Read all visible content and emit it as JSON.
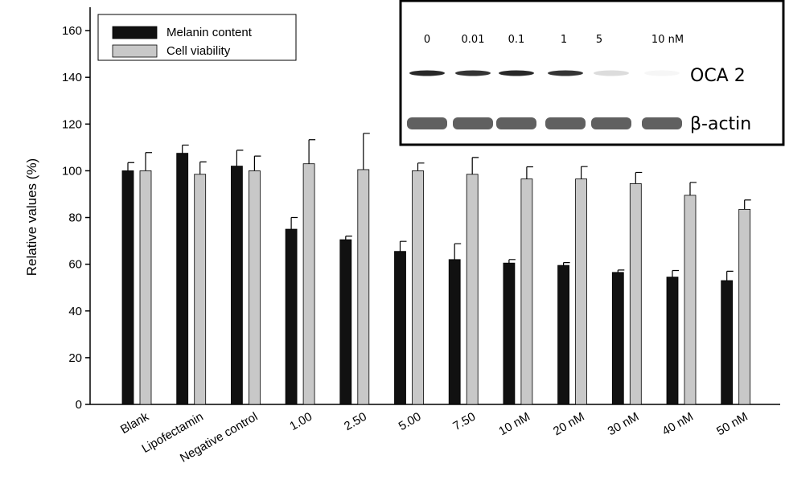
{
  "chart_data": {
    "type": "bar",
    "y_label": "Relative values (%)",
    "categories": [
      "Blank",
      "Lipofectamin",
      "Negative control",
      "1.00",
      "2.50",
      "5.00",
      "7.50",
      "10 nM",
      "20 nM",
      "30 nM",
      "40 nM",
      "50 nM"
    ],
    "series": [
      {
        "name": "Melanin content",
        "color": "#111111",
        "values": [
          100,
          107.5,
          102,
          75,
          70.5,
          65.5,
          62,
          60.5,
          59.5,
          56.5,
          54.5,
          53
        ],
        "errors": [
          3.5,
          3.5,
          6.8,
          5,
          1.5,
          4.3,
          6.8,
          1.5,
          1.2,
          1,
          2.8,
          4
        ]
      },
      {
        "name": "Cell viability",
        "color": "#c8c8c8",
        "values": [
          100,
          98.5,
          100,
          103,
          100.5,
          100,
          98.5,
          96.5,
          96.5,
          94.5,
          89.5,
          83.5
        ],
        "errors": [
          7.8,
          5.3,
          6.3,
          10.3,
          15.5,
          3.3,
          7.2,
          5.2,
          5.3,
          4.8,
          5.5,
          4
        ]
      }
    ],
    "ylim": [
      0,
      170
    ],
    "yticks": [
      0,
      20,
      40,
      60,
      80,
      100,
      120,
      140,
      160
    ],
    "legend": "top-left",
    "inset": {
      "lanes": [
        "0",
        "0.01",
        "0.1",
        "1",
        "5",
        "10 nM"
      ],
      "rows": [
        "OCA 2",
        "β-actin"
      ]
    }
  }
}
